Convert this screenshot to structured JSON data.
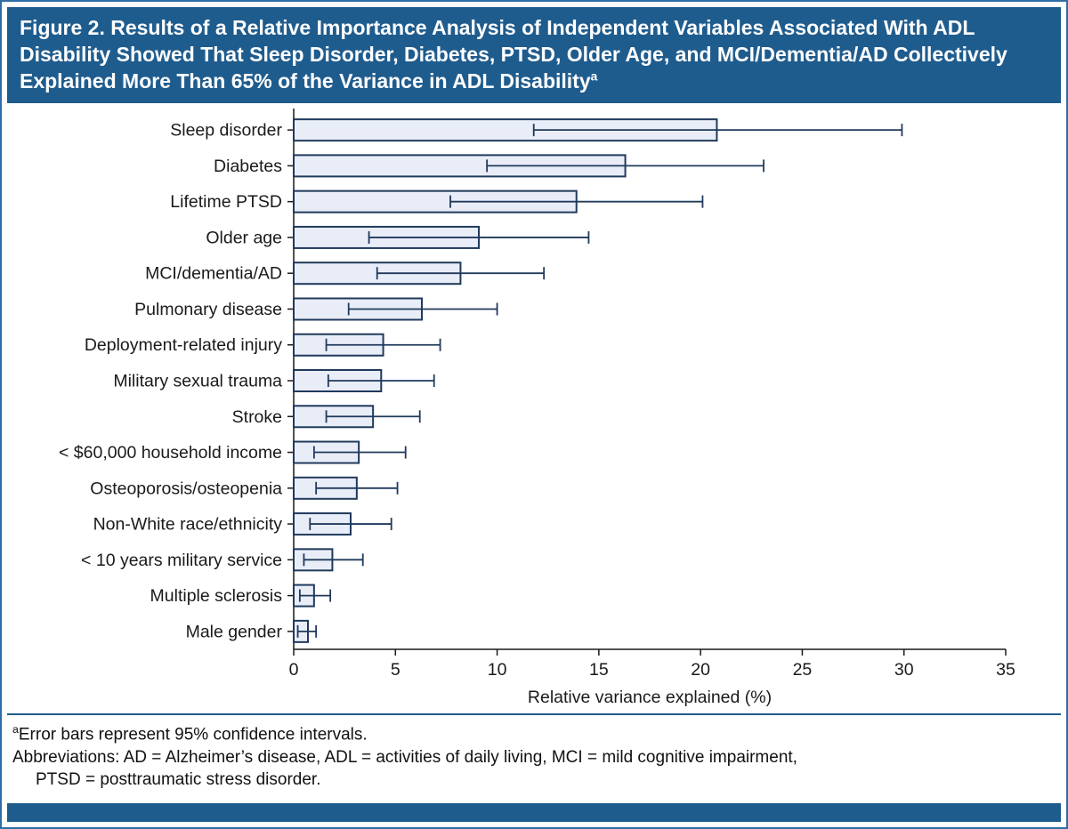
{
  "figure": {
    "title": "Figure 2. Results of a Relative Importance Analysis of Independent Variables Associated With ADL Disability Showed That Sleep Disorder, Diabetes, PTSD, Older Age, and MCI/Dementia/AD Collectively Explained More Than 65% of the Variance in ADL Disability",
    "title_superscript": "a"
  },
  "chart_data": {
    "type": "bar",
    "orientation": "horizontal",
    "title": "Relative importance analysis of independent variables associated with ADL disability",
    "categories": [
      "Sleep disorder",
      "Diabetes",
      "Lifetime PTSD",
      "Older age",
      "MCI/dementia/AD",
      "Pulmonary disease",
      "Deployment-related injury",
      "Military sexual trauma",
      "Stroke",
      "< $60,000 household income",
      "Osteoporosis/osteopenia",
      "Non-White race/ethnicity",
      "< 10 years military service",
      "Multiple sclerosis",
      "Male gender"
    ],
    "values": [
      20.8,
      16.3,
      13.9,
      9.1,
      8.2,
      6.3,
      4.4,
      4.3,
      3.9,
      3.2,
      3.1,
      2.8,
      1.9,
      1.0,
      0.7
    ],
    "ci_low": [
      11.8,
      9.5,
      7.7,
      3.7,
      4.1,
      2.7,
      1.6,
      1.7,
      1.6,
      1.0,
      1.1,
      0.8,
      0.5,
      0.3,
      0.2
    ],
    "ci_high": [
      29.9,
      23.1,
      20.1,
      14.5,
      12.3,
      10.0,
      7.2,
      6.9,
      6.2,
      5.5,
      5.1,
      4.8,
      3.4,
      1.8,
      1.1
    ],
    "xlabel": "Relative variance explained (%)",
    "ylabel": "",
    "xlim": [
      0,
      35
    ],
    "xticks": [
      0,
      5,
      10,
      15,
      20,
      25,
      30,
      35
    ],
    "grid": false,
    "legend": "none",
    "error_bars": "95% confidence intervals",
    "bar_fill": "#e9edf8",
    "bar_stroke": "#203a5c",
    "error_color": "#203a5c",
    "axis_color": "#1a1a1a"
  },
  "footnotes": {
    "note1_sup": "a",
    "note1": "Error bars represent 95% confidence intervals.",
    "note2": "Abbreviations: AD = Alzheimer’s disease, ADL = activities of daily living, MCI = mild cognitive impairment,",
    "note3": "PTSD = posttraumatic stress disorder."
  },
  "colors": {
    "header_bg": "#1f5c8e",
    "border": "#2f6da6",
    "bottom_bar": "#1f5c8e"
  }
}
